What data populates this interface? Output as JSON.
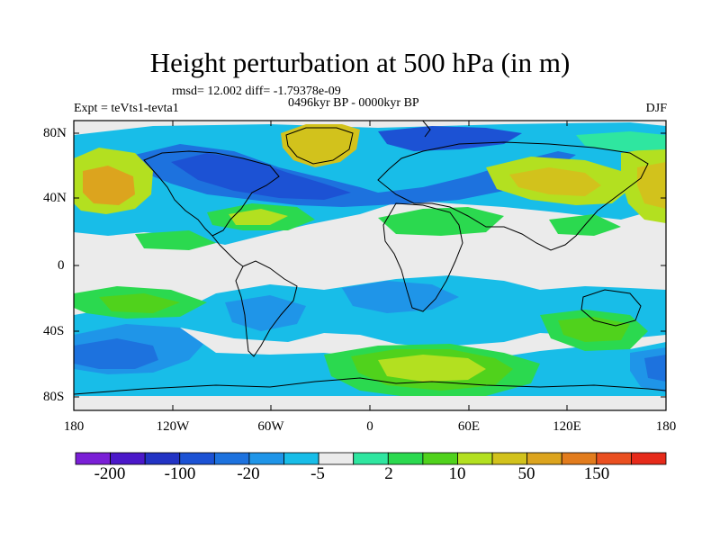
{
  "header": {
    "title": "Height perturbation at 500 hPa (in m)",
    "stats": "rmsd= 12.002 diff= -1.79378e-09",
    "period": "0496kyr BP - 0000kyr BP",
    "experiment": "Expt = teVts1-tevta1",
    "season": "DJF"
  },
  "axes": {
    "y_ticks": [
      "80N",
      "40N",
      "0",
      "40S",
      "80S"
    ],
    "x_ticks": [
      "180",
      "120W",
      "60W",
      "0",
      "60E",
      "120E",
      "180"
    ]
  },
  "colorbar": {
    "colors": [
      "#7a1fd6",
      "#4b18c9",
      "#2233c4",
      "#1c52d4",
      "#1d72de",
      "#1f95e8",
      "#18bde8",
      "#ebebeb",
      "#2fe6a0",
      "#2bd94f",
      "#50d21c",
      "#b3e020",
      "#d2c21c",
      "#dca41e",
      "#e27c1d",
      "#ea4f20",
      "#e62a1a"
    ],
    "labels": [
      "-200",
      "-100",
      "-20",
      "-5",
      "2",
      "10",
      "50",
      "150"
    ]
  },
  "palette": {
    "neutral": "#ebebeb",
    "light_blue": "#18bde8",
    "mid_blue": "#1f95e8",
    "blue": "#1d72de",
    "dark_blue": "#1c52d4",
    "cyan_green": "#2fe6a0",
    "green": "#2bd94f",
    "lime": "#50d21c",
    "yellow_green": "#b3e020",
    "gold": "#d2c21c",
    "orange": "#dca41e"
  }
}
